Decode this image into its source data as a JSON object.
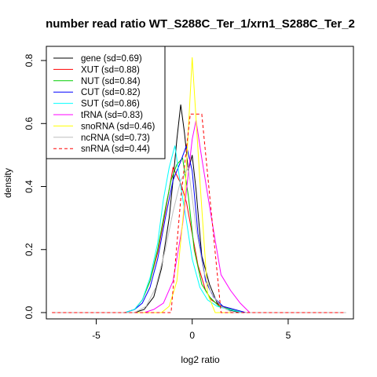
{
  "chart_data": {
    "type": "line",
    "title": "number read ratio WT_S288C_Ter_1/xrn1_S288C_Ter_2",
    "xlabel": "log2 ratio",
    "ylabel": "density",
    "xlim": [
      -7.6,
      8.4
    ],
    "ylim": [
      -0.02,
      0.845
    ],
    "xticks": [
      -5,
      0,
      5
    ],
    "xtick_labels": [
      "-5",
      "0",
      "5"
    ],
    "yticks": [
      0.0,
      0.2,
      0.4,
      0.6,
      0.8
    ],
    "ytick_labels": [
      "0.0",
      "0.2",
      "0.4",
      "0.6",
      "0.8"
    ],
    "grid": false,
    "legend_position": "top-left",
    "series": [
      {
        "name": "gene (sd=0.69)",
        "color": "#000000",
        "dash": "solid",
        "x": [
          -7.3,
          -3.0,
          -2.5,
          -2.0,
          -1.6,
          -1.2,
          -1.0,
          -0.8,
          -0.6,
          -0.4,
          -0.2,
          0.0,
          0.2,
          0.5,
          0.9,
          1.3,
          1.8,
          2.5,
          8.0
        ],
        "y": [
          0.0,
          0.0,
          0.01,
          0.05,
          0.14,
          0.3,
          0.42,
          0.55,
          0.66,
          0.57,
          0.45,
          0.5,
          0.39,
          0.18,
          0.09,
          0.03,
          0.01,
          0.0,
          0.0
        ]
      },
      {
        "name": "XUT (sd=0.88)",
        "color": "#ff0000",
        "dash": "solid",
        "x": [
          -7.3,
          -3.5,
          -3.0,
          -2.6,
          -2.2,
          -1.8,
          -1.4,
          -1.0,
          -0.6,
          -0.3,
          0.0,
          0.3,
          0.7,
          1.0,
          1.5,
          2.0,
          2.6,
          8.0
        ],
        "y": [
          0.0,
          0.0,
          0.01,
          0.04,
          0.1,
          0.19,
          0.32,
          0.46,
          0.41,
          0.35,
          0.25,
          0.15,
          0.07,
          0.04,
          0.02,
          0.01,
          0.0,
          0.0
        ]
      },
      {
        "name": "NUT (sd=0.84)",
        "color": "#00cd00",
        "dash": "solid",
        "x": [
          -7.3,
          -3.5,
          -3.0,
          -2.6,
          -2.2,
          -1.8,
          -1.4,
          -1.1,
          -0.8,
          -0.5,
          -0.2,
          0.1,
          0.5,
          0.9,
          1.4,
          2.0,
          2.6,
          8.0
        ],
        "y": [
          0.0,
          0.0,
          0.01,
          0.04,
          0.1,
          0.2,
          0.33,
          0.42,
          0.47,
          0.49,
          0.37,
          0.2,
          0.09,
          0.05,
          0.02,
          0.01,
          0.0,
          0.0
        ]
      },
      {
        "name": "CUT (sd=0.82)",
        "color": "#0000ff",
        "dash": "solid",
        "x": [
          -7.3,
          -3.5,
          -3.0,
          -2.6,
          -2.2,
          -1.8,
          -1.4,
          -1.0,
          -0.6,
          -0.3,
          0.0,
          0.3,
          0.7,
          1.1,
          1.6,
          2.2,
          2.8,
          8.0
        ],
        "y": [
          0.0,
          0.0,
          0.01,
          0.03,
          0.08,
          0.17,
          0.3,
          0.42,
          0.48,
          0.53,
          0.45,
          0.25,
          0.1,
          0.05,
          0.02,
          0.01,
          0.0,
          0.0
        ]
      },
      {
        "name": "SUT (sd=0.86)",
        "color": "#00ffff",
        "dash": "solid",
        "x": [
          -7.3,
          -3.5,
          -3.0,
          -2.6,
          -2.2,
          -1.8,
          -1.5,
          -1.2,
          -0.9,
          -0.6,
          -0.3,
          0.0,
          0.4,
          0.8,
          1.3,
          1.9,
          2.6,
          8.0
        ],
        "y": [
          0.0,
          0.0,
          0.01,
          0.04,
          0.11,
          0.22,
          0.36,
          0.46,
          0.53,
          0.4,
          0.29,
          0.17,
          0.08,
          0.04,
          0.02,
          0.01,
          0.0,
          0.0
        ]
      },
      {
        "name": "tRNA (sd=0.83)",
        "color": "#ff00ff",
        "dash": "solid",
        "x": [
          -7.3,
          -2.5,
          -2.0,
          -1.5,
          -1.0,
          -0.5,
          0.0,
          0.2,
          0.5,
          1.0,
          1.5,
          2.0,
          2.5,
          3.0,
          8.0
        ],
        "y": [
          0.0,
          0.0,
          0.01,
          0.03,
          0.1,
          0.28,
          0.55,
          0.61,
          0.49,
          0.3,
          0.12,
          0.07,
          0.03,
          0.0,
          0.0
        ]
      },
      {
        "name": "snoRNA (sd=0.46)",
        "color": "#ffff00",
        "dash": "solid",
        "x": [
          -7.3,
          -1.6,
          -1.2,
          -0.8,
          -0.4,
          0.0,
          0.4,
          0.8,
          1.2,
          1.6,
          8.0
        ],
        "y": [
          0.0,
          0.0,
          0.02,
          0.1,
          0.35,
          0.81,
          0.42,
          0.06,
          0.0,
          0.0,
          0.0
        ]
      },
      {
        "name": "ncRNA (sd=0.73)",
        "color": "#bebebe",
        "dash": "solid",
        "x": [
          -7.3,
          -3.0,
          -2.4,
          -1.9,
          -1.4,
          -1.0,
          -0.6,
          -0.2,
          0.2,
          0.6,
          1.0,
          1.5,
          2.1,
          8.0
        ],
        "y": [
          0.0,
          0.0,
          0.02,
          0.08,
          0.2,
          0.32,
          0.42,
          0.46,
          0.27,
          0.13,
          0.06,
          0.02,
          0.0,
          0.0
        ]
      },
      {
        "name": "snRNA (sd=0.44)",
        "color": "#ff0000",
        "dash": "dashed",
        "x": [
          -7.3,
          -1.1,
          -0.6,
          -0.1,
          0.5,
          1.5,
          8.0
        ],
        "y": [
          0.0,
          0.0,
          0.36,
          0.63,
          0.63,
          0.0,
          0.0
        ]
      }
    ]
  }
}
